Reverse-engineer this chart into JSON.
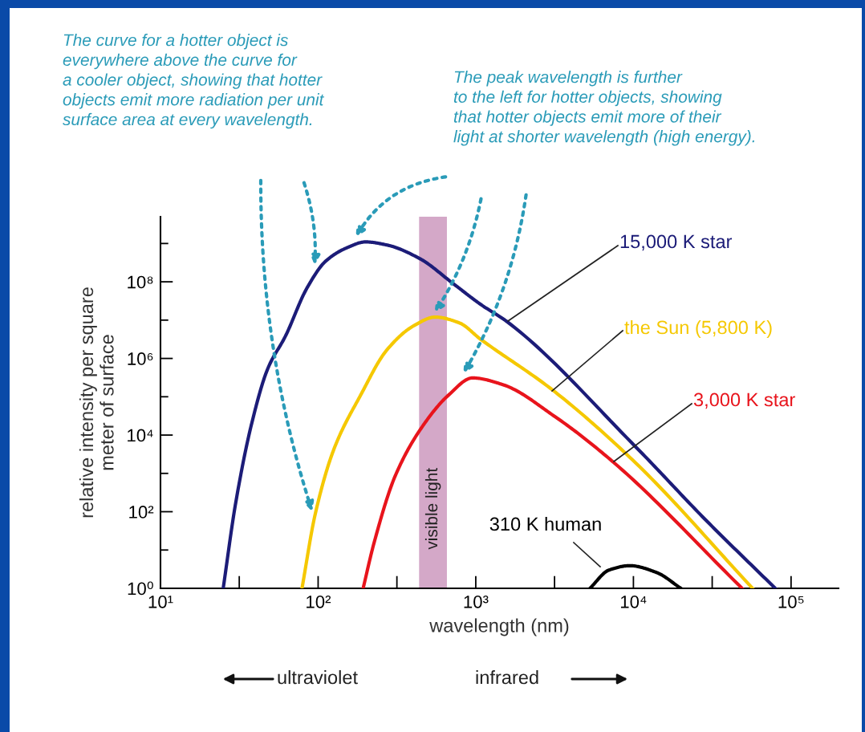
{
  "chart_data": {
    "type": "line",
    "xlabel": "wavelength (nm)",
    "ylabel": "relative intensity per square\nmeter of surface",
    "log": "xy",
    "xlim": [
      10,
      200000
    ],
    "ylim": [
      1,
      5000000000.0
    ],
    "xticks": [
      {
        "value": 10,
        "label": "10¹"
      },
      {
        "value": 31.6,
        "label": null
      },
      {
        "value": 100,
        "label": "10²"
      },
      {
        "value": 316,
        "label": null
      },
      {
        "value": 1000,
        "label": "10³"
      },
      {
        "value": 3160,
        "label": null
      },
      {
        "value": 10000,
        "label": "10⁴"
      },
      {
        "value": 31600,
        "label": null
      },
      {
        "value": 100000,
        "label": "10⁵"
      }
    ],
    "yticks": [
      {
        "value": 1,
        "label": "10⁰"
      },
      {
        "value": 10,
        "label": null
      },
      {
        "value": 100,
        "label": "10²"
      },
      {
        "value": 1000,
        "label": null
      },
      {
        "value": 10000,
        "label": "10⁴"
      },
      {
        "value": 100000,
        "label": null
      },
      {
        "value": 1000000,
        "label": "10⁶"
      },
      {
        "value": 10000000,
        "label": null
      },
      {
        "value": 100000000,
        "label": "10⁸"
      },
      {
        "value": 1000000000,
        "label": null
      }
    ],
    "grid": false,
    "legend": false,
    "marker": "none",
    "line_style": "solid",
    "bands": [
      {
        "axis": "x",
        "from": 437,
        "to": 656,
        "label": "visible light",
        "color": "#d4a8c8"
      }
    ],
    "annotations": [
      "The curve for a hotter object is\neverywhere above the curve for\na cooler object, showing that hotter\nobjects emit more radiation per unit\nsurface area at every wavelength.",
      "The peak wavelength is further\nto the left for hotter objects, showing\nthat hotter objects emit more of their\nlight at shorter wavelength (high energy).",
      "ultraviolet",
      "infrared"
    ],
    "series": [
      {
        "name": "15,000 K star",
        "color": "#1c1c78",
        "x": [
          25,
          30,
          38,
          48,
          62,
          85,
          112,
          153,
          200,
          274,
          438,
          726,
          1070,
          1580,
          10300,
          28300,
          79400
        ],
        "values": [
          1,
          170,
          21000,
          550000,
          3800000,
          69000000,
          350000000,
          780000000,
          1100000000,
          910000000,
          410000000,
          87000000,
          26000000,
          9100000,
          5000,
          65,
          1
        ]
      },
      {
        "name": "the Sun (5,800 K)",
        "color": "#f5c800",
        "x": [
          79,
          96,
          126,
          186,
          274,
          406,
          553,
          785,
          1070,
          3070,
          10300,
          57000
        ],
        "values": [
          1,
          89,
          4300,
          110000,
          1700000,
          7200000,
          12000000,
          8500000,
          3200000,
          150000,
          1900,
          1
        ]
      },
      {
        "name": "3,000 K star",
        "color": "#e8141c",
        "x": [
          193,
          226,
          308,
          455,
          671,
          955,
          1470,
          3190,
          7530,
          48900
        ],
        "values": [
          1,
          15,
          850,
          16000,
          110000,
          310000,
          210000,
          30000,
          1900,
          1
        ]
      },
      {
        "name": "310 K human",
        "color": "#000000",
        "x": [
          5300,
          7000,
          9500,
          14000,
          20000
        ],
        "values": [
          1,
          3.0,
          3.9,
          2.6,
          1
        ]
      }
    ]
  }
}
